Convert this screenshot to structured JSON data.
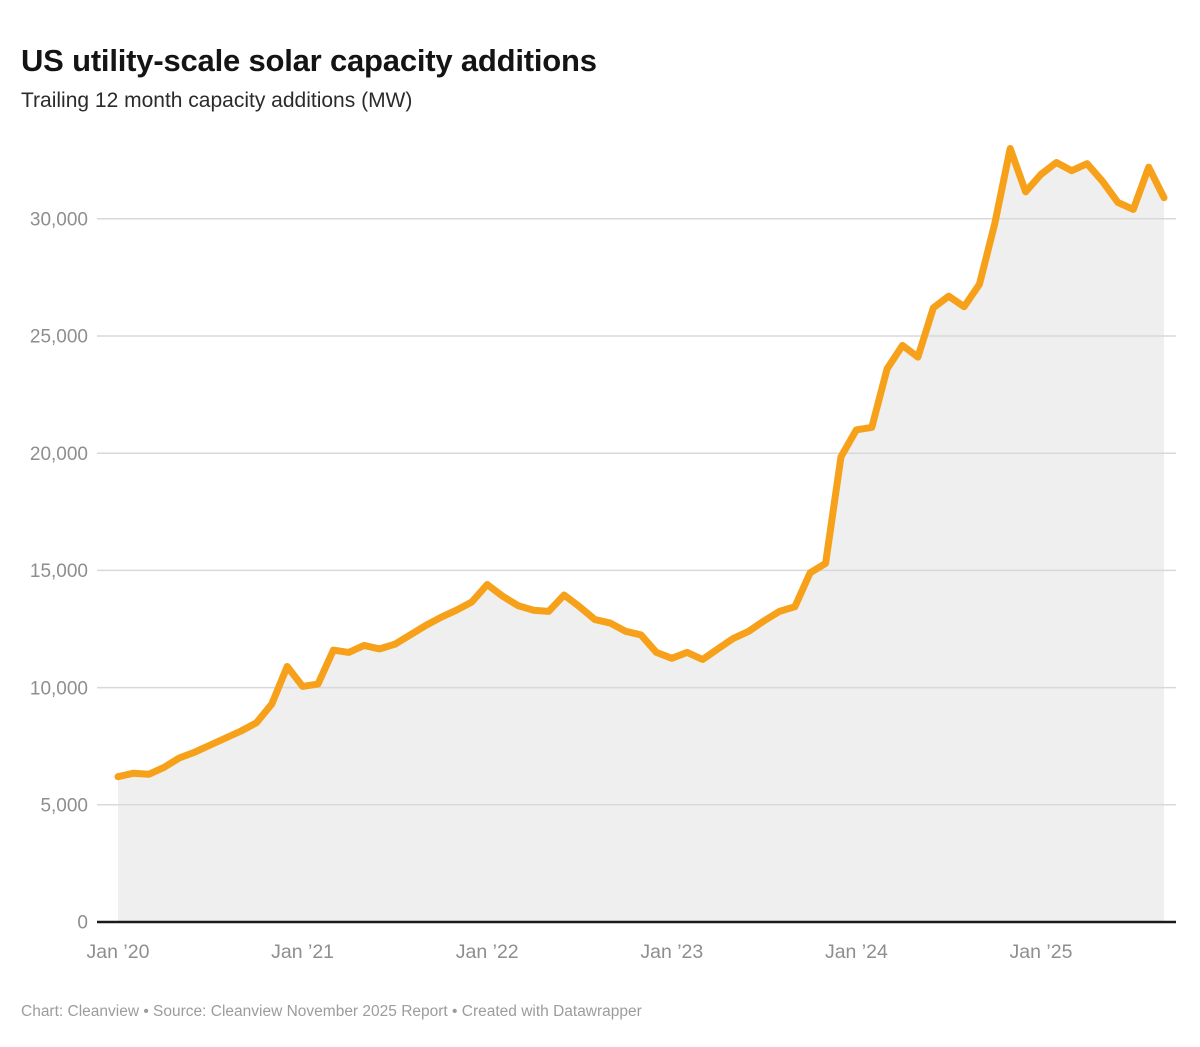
{
  "header": {
    "title": "US utility-scale solar capacity additions",
    "subtitle": "Trailing 12 month capacity additions (MW)"
  },
  "footer": {
    "text": "Chart: Cleanview • Source: Cleanview November 2025 Report • Created with Datawrapper"
  },
  "chart_data": {
    "type": "area",
    "title": "US utility-scale solar capacity additions",
    "ylabel": "Trailing 12 month capacity additions (MW)",
    "xlabel": "",
    "legend": "none",
    "grid": "horizontal",
    "ylim": [
      0,
      33500
    ],
    "yticks": [
      0,
      5000,
      10000,
      15000,
      20000,
      25000,
      30000
    ],
    "ytick_labels": [
      "0",
      "5,000",
      "10,000",
      "15,000",
      "20,000",
      "25,000",
      "30,000"
    ],
    "xtick_labels": [
      "Jan ’20",
      "Jan ’21",
      "Jan ’22",
      "Jan ’23",
      "Jan ’24",
      "Jan ’25"
    ],
    "line_color": "#F7A11A",
    "area_color": "#EFEFEF",
    "axis_color": "#1a1a1a",
    "grid_color": "#D9D9D9",
    "tick_text_color": "#8E8E8E",
    "x": [
      "Jan 2020",
      "Feb 2020",
      "Mar 2020",
      "Apr 2020",
      "May 2020",
      "Jun 2020",
      "Jul 2020",
      "Aug 2020",
      "Sep 2020",
      "Oct 2020",
      "Nov 2020",
      "Dec 2020",
      "Jan 2021",
      "Feb 2021",
      "Mar 2021",
      "Apr 2021",
      "May 2021",
      "Jun 2021",
      "Jul 2021",
      "Aug 2021",
      "Sep 2021",
      "Oct 2021",
      "Nov 2021",
      "Dec 2021",
      "Jan 2022",
      "Feb 2022",
      "Mar 2022",
      "Apr 2022",
      "May 2022",
      "Jun 2022",
      "Jul 2022",
      "Aug 2022",
      "Sep 2022",
      "Oct 2022",
      "Nov 2022",
      "Dec 2022",
      "Jan 2023",
      "Feb 2023",
      "Mar 2023",
      "Apr 2023",
      "May 2023",
      "Jun 2023",
      "Jul 2023",
      "Aug 2023",
      "Sep 2023",
      "Oct 2023",
      "Nov 2023",
      "Dec 2023",
      "Jan 2024",
      "Feb 2024",
      "Mar 2024",
      "Apr 2024",
      "May 2024",
      "Jun 2024",
      "Jul 2024",
      "Aug 2024",
      "Sep 2024",
      "Oct 2024",
      "Nov 2024",
      "Dec 2024",
      "Jan 2025",
      "Feb 2025",
      "Mar 2025",
      "Apr 2025",
      "May 2025",
      "Jun 2025",
      "Jul 2025",
      "Aug 2025",
      "Sep 2025"
    ],
    "values": [
      6200,
      6350,
      6300,
      6600,
      7000,
      7250,
      7550,
      7850,
      8150,
      8500,
      9300,
      10900,
      10050,
      10150,
      11600,
      11500,
      11800,
      11650,
      11850,
      12250,
      12650,
      13000,
      13300,
      13650,
      14400,
      13900,
      13500,
      13300,
      13250,
      13950,
      13450,
      12900,
      12750,
      12400,
      12250,
      11500,
      11250,
      11500,
      11200,
      11650,
      12100,
      12400,
      12850,
      13250,
      13450,
      14900,
      15300,
      19850,
      21000,
      21100,
      23600,
      24600,
      24100,
      26200,
      26700,
      26250,
      27200,
      29800,
      33000,
      31150,
      31900,
      32400,
      32050,
      32350,
      31600,
      30700,
      30400,
      32200,
      30900
    ]
  }
}
